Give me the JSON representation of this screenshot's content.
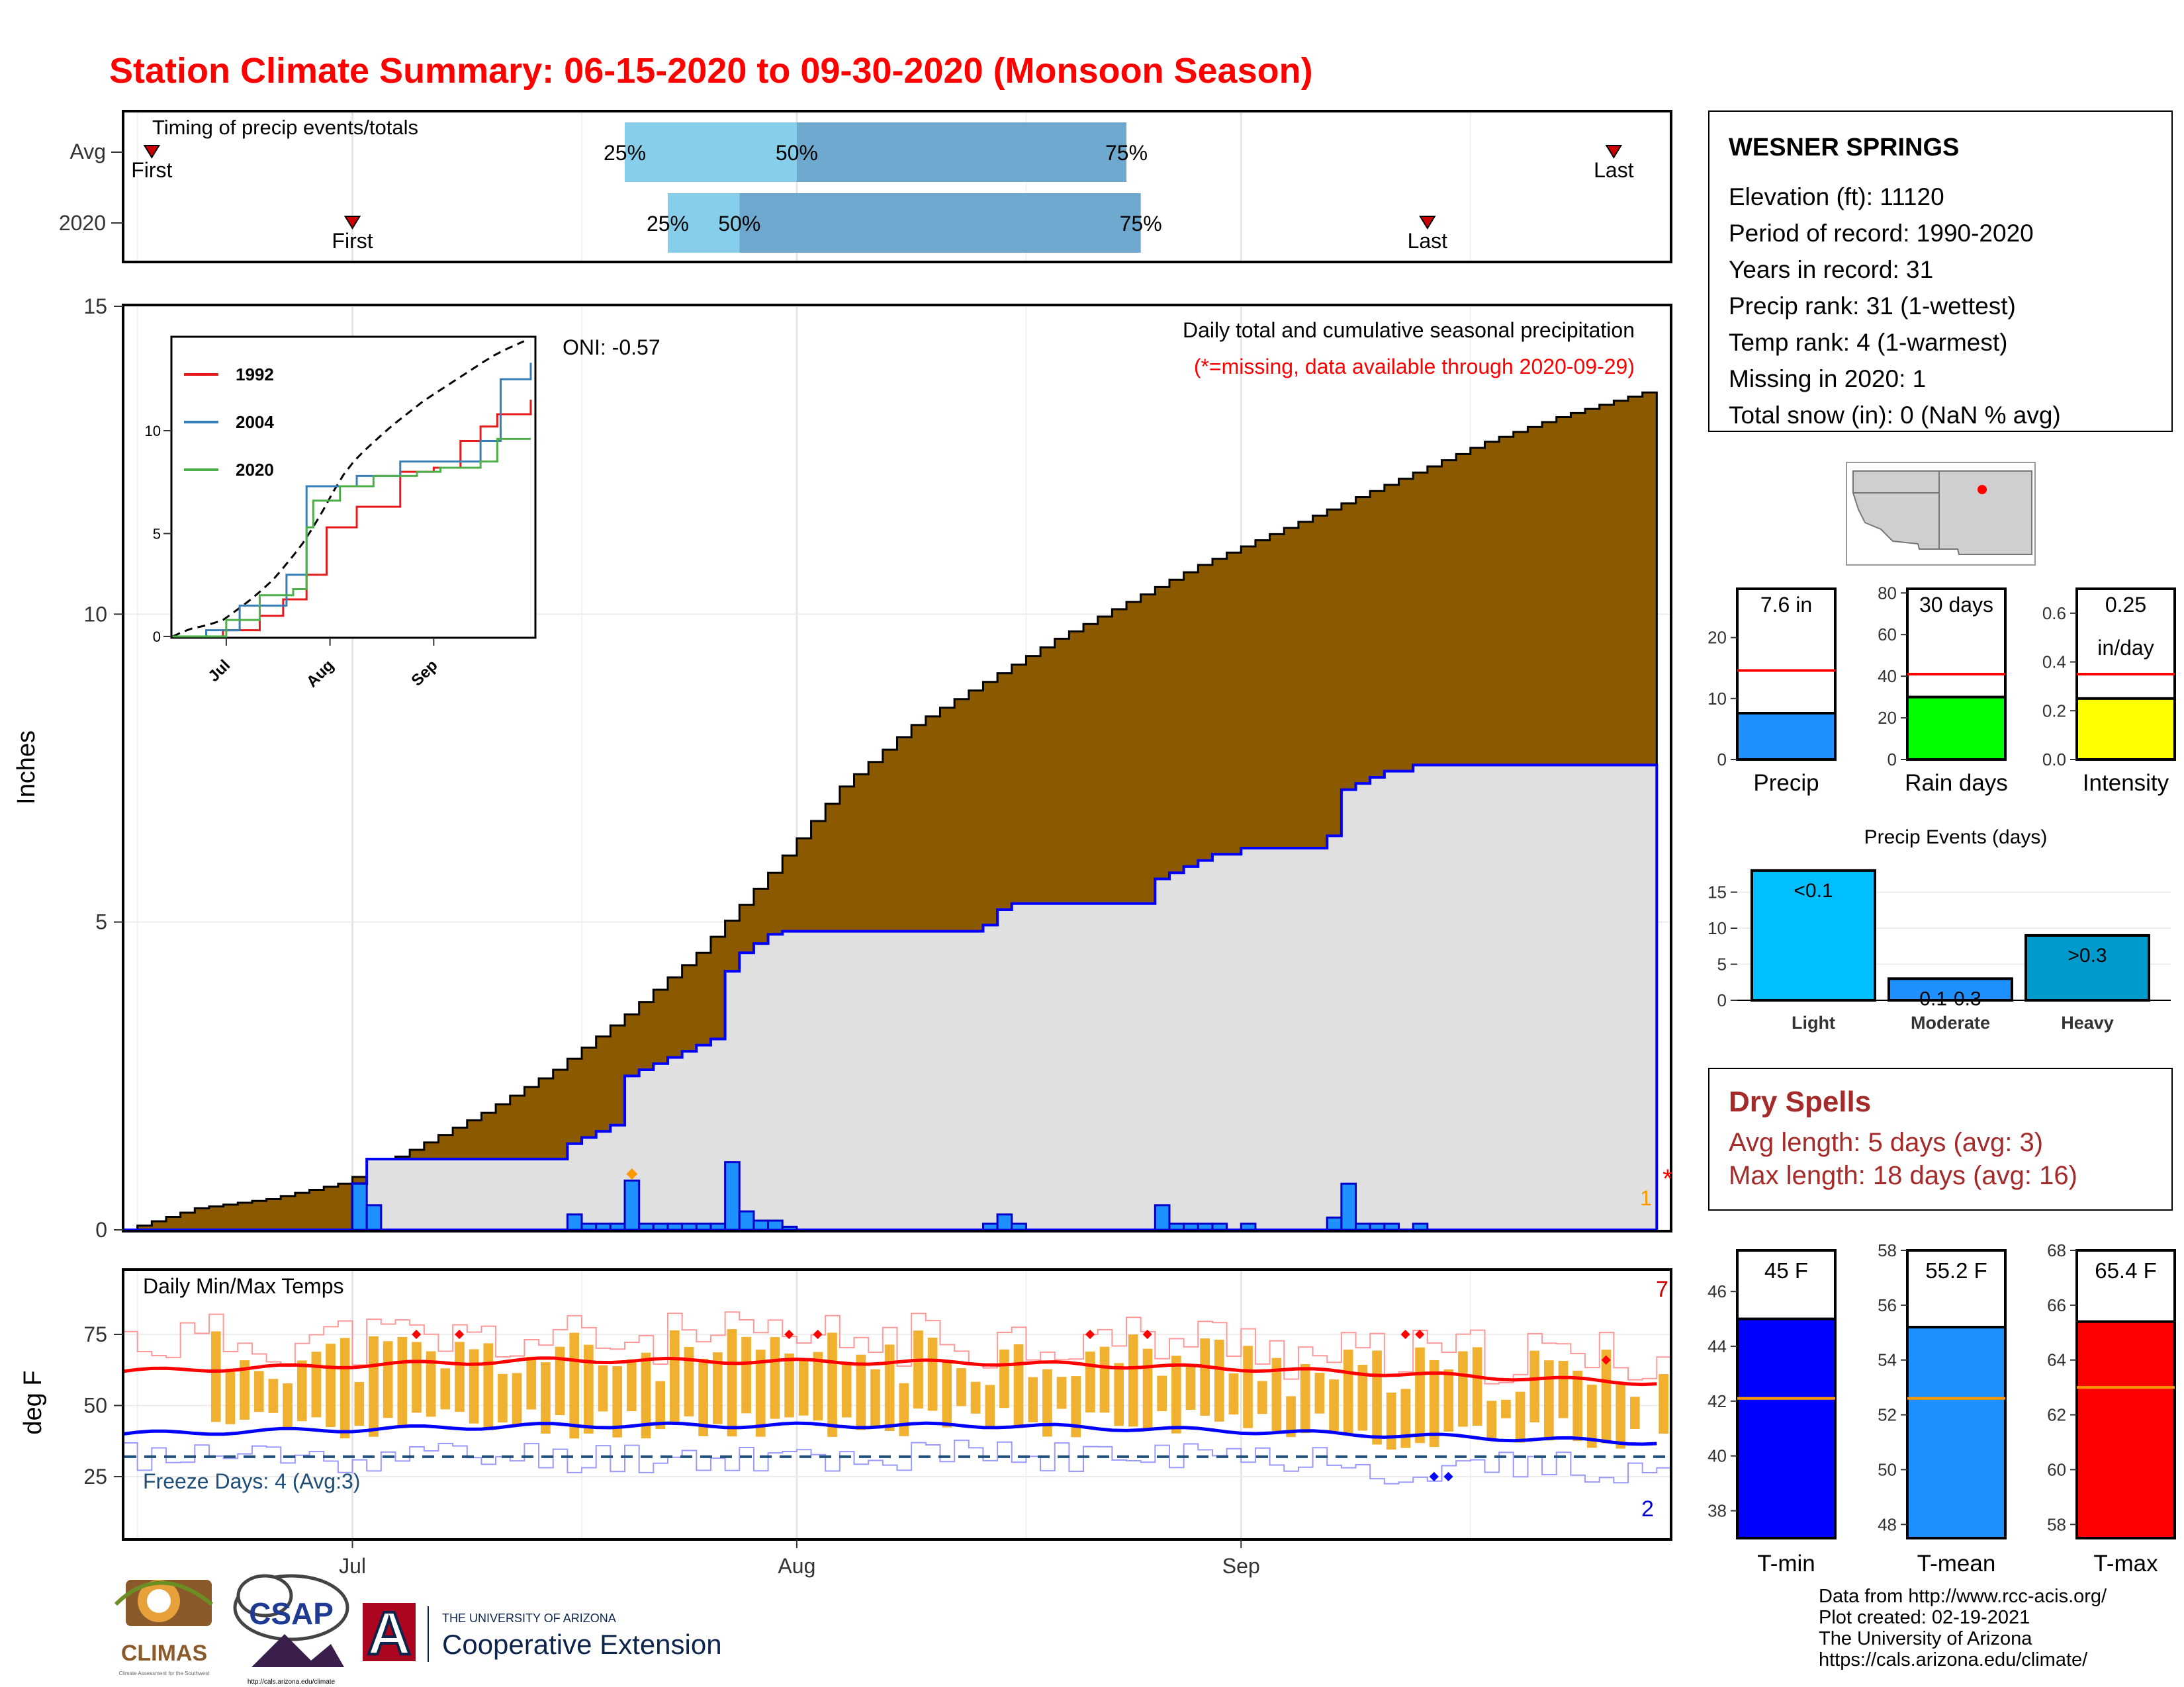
{
  "title": "Station Climate Summary: 06-15-2020 to 09-30-2020 (Monsoon Season)",
  "colors": {
    "title": "#ff0000",
    "avg_cum": "#8b5a00",
    "obs_cum_fill": "#e0e0e0",
    "obs_line": "#0000ff",
    "daily_bar": "#1e90ff",
    "temp_bar": "#f0b030",
    "tmin": "#0000ff",
    "tmean": "#1e90ff",
    "tmax": "#ff0000",
    "avg_line": "#ff9900",
    "dry_spells": "#a52a2a",
    "light": "#00bfff",
    "moderate": "#1e90ff",
    "heavy": "#009acd",
    "iqr_light": "#87ceeb",
    "iqr_dark": "#6fa8cf"
  },
  "timing": {
    "title": "Timing of precip events/totals",
    "rows": [
      {
        "label": "Avg",
        "first": "2020-06-17",
        "p25": "2020-07-20",
        "p50": "2020-08-01",
        "p75": "2020-08-24",
        "last": "2020-09-27"
      },
      {
        "label": "2020",
        "first": "2020-07-01",
        "p25": "2020-07-23",
        "p50": "2020-07-28",
        "p75": "2020-08-25",
        "last": "2020-09-14"
      }
    ],
    "first_label": "First",
    "last_label": "Last",
    "p25_label": "25%",
    "p50_label": "50%",
    "p75_label": "75%"
  },
  "precip_panel": {
    "ylabel": "Inches",
    "yticks": [
      0,
      5,
      10,
      15
    ],
    "annotation_oni": "ONI: -0.57",
    "caption": "Daily total and cumulative seasonal precipitation",
    "caption_missing": "(*=missing, data available through 2020-09-29)",
    "missing_marker": "*",
    "missing_count": "1",
    "ylim": [
      0,
      15
    ]
  },
  "inset": {
    "yticks": [
      0,
      5,
      10
    ],
    "xticks": [
      "Jul",
      "Aug",
      "Sep"
    ],
    "legend": [
      {
        "name": "1992",
        "color": "#e41a1c"
      },
      {
        "name": "2004",
        "color": "#377eb8"
      },
      {
        "name": "2020",
        "color": "#4daf4a"
      }
    ]
  },
  "temp_panel": {
    "ylabel": "deg F",
    "title": "Daily Min/Max Temps",
    "yticks": [
      25,
      50,
      75
    ],
    "freeze_text": "Freeze Days: 4 (Avg:3)",
    "count_top": "7",
    "count_bottom": "2",
    "freeze_threshold": 32
  },
  "xaxis": {
    "ticks": [
      {
        "date": "2020-07-01",
        "label": "Jul"
      },
      {
        "date": "2020-08-01",
        "label": "Aug"
      },
      {
        "date": "2020-09-01",
        "label": "Sep"
      }
    ],
    "start": "2020-06-15",
    "end": "2020-09-30"
  },
  "station": {
    "name": "WESNER SPRINGS",
    "lines": [
      "Elevation (ft): 11120",
      "Period of record: 1990-2020",
      "Years in record: 31",
      "Precip rank: 31 (1-wettest)",
      "Temp rank: 4 (1-warmest)",
      "Missing in 2020: 1",
      "Total snow (in): 0 (NaN % avg)"
    ]
  },
  "mini_bars": [
    {
      "xlabel": "Precip",
      "label": "7.6 in",
      "value": 7.6,
      "avg": 14.6,
      "ymax": 28,
      "yticks": [
        0,
        10,
        20
      ],
      "color": "#1e90ff"
    },
    {
      "xlabel": "Rain days",
      "label": "30 days",
      "value": 30,
      "avg": 41,
      "ymax": 82,
      "yticks": [
        0,
        20,
        40,
        60,
        80
      ],
      "color": "#00ff00"
    },
    {
      "xlabel": "Intensity",
      "label": "0.25",
      "label2": "in/day",
      "value": 0.25,
      "avg": 0.35,
      "ymax": 0.7,
      "yticks": [
        "0.0",
        "0.2",
        "0.4",
        "0.6"
      ],
      "color": "#ffff00"
    }
  ],
  "precip_events": {
    "title": "Precip Events (days)",
    "yticks": [
      0,
      5,
      10,
      15
    ],
    "categories": [
      "Light",
      "Moderate",
      "Heavy"
    ],
    "values": [
      18,
      3,
      9
    ],
    "labels": [
      "<0.1",
      "0.1-0.3",
      ">0.3"
    ]
  },
  "dry_spells": {
    "title": "Dry Spells",
    "avg_line": "Avg length: 5 days (avg: 3)",
    "max_line": "Max length: 18 days (avg: 16)"
  },
  "temp_bars": [
    {
      "xlabel": "T-min",
      "label": "45 F",
      "value": 45,
      "avg": 42.1,
      "ymin": 37,
      "ymax": 47.5,
      "yticks": [
        38,
        40,
        42,
        44,
        46
      ],
      "color": "#0000ff"
    },
    {
      "xlabel": "T-mean",
      "label": "55.2 F",
      "value": 55.2,
      "avg": 52.6,
      "ymin": 47.5,
      "ymax": 58,
      "yticks": [
        48,
        50,
        52,
        54,
        56,
        58
      ],
      "color": "#1e90ff"
    },
    {
      "xlabel": "T-max",
      "label": "65.4 F",
      "value": 65.4,
      "avg": 63,
      "ymin": 57.5,
      "ymax": 68,
      "yticks": [
        58,
        60,
        62,
        64,
        66,
        68
      ],
      "color": "#ff0000"
    }
  ],
  "logos": {
    "climas": "CLIMAS",
    "climas_sub": "Climate Assessment for the Southwest",
    "csap": "CSAP",
    "csap_url": "http://cals.arizona.edu/climate",
    "ua_small": "THE UNIVERSITY OF ARIZONA",
    "ua_big": "Cooperative Extension",
    "ua_letter": "A"
  },
  "footer": [
    "Data from http://www.rcc-acis.org/",
    "Plot created: 02-19-2021",
    "The University of Arizona",
    "https://cals.arizona.edu/climate/"
  ],
  "chart_data": [
    {
      "type": "bar",
      "title": "Timing of precip events/totals",
      "categories": [
        "Avg",
        "2020"
      ],
      "series": [
        {
          "name": "First",
          "values": [
            "2020-06-17",
            "2020-07-01"
          ]
        },
        {
          "name": "25%",
          "values": [
            "2020-07-20",
            "2020-07-23"
          ]
        },
        {
          "name": "50%",
          "values": [
            "2020-08-01",
            "2020-07-28"
          ]
        },
        {
          "name": "75%",
          "values": [
            "2020-08-24",
            "2020-08-25"
          ]
        },
        {
          "name": "Last",
          "values": [
            "2020-09-27",
            "2020-09-14"
          ]
        }
      ]
    },
    {
      "type": "area",
      "title": "Daily total and cumulative seasonal precipitation",
      "ylabel": "Inches",
      "ylim": [
        0,
        15
      ],
      "x_start": "2020-06-15",
      "avg_cumulative_knots": [
        [
          "2020-06-15",
          0
        ],
        [
          "2020-06-20",
          0.35
        ],
        [
          "2020-06-25",
          0.5
        ],
        [
          "2020-06-30",
          0.75
        ],
        [
          "2020-07-05",
          1.3
        ],
        [
          "2020-07-10",
          1.9
        ],
        [
          "2020-07-15",
          2.6
        ],
        [
          "2020-07-20",
          3.5
        ],
        [
          "2020-07-25",
          4.5
        ],
        [
          "2020-07-30",
          5.8
        ],
        [
          "2020-08-04",
          7.2
        ],
        [
          "2020-08-09",
          8.2
        ],
        [
          "2020-08-14",
          8.9
        ],
        [
          "2020-08-19",
          9.6
        ],
        [
          "2020-08-24",
          10.2
        ],
        [
          "2020-08-29",
          10.8
        ],
        [
          "2020-09-03",
          11.3
        ],
        [
          "2020-09-08",
          11.8
        ],
        [
          "2020-09-13",
          12.3
        ],
        [
          "2020-09-18",
          12.8
        ],
        [
          "2020-09-23",
          13.2
        ],
        [
          "2020-09-29",
          13.6
        ]
      ],
      "series": [
        {
          "name": "2020 daily precip",
          "x": [
            "2020-07-01",
            "2020-07-02",
            "2020-07-16",
            "2020-07-17",
            "2020-07-18",
            "2020-07-19",
            "2020-07-20",
            "2020-07-21",
            "2020-07-22",
            "2020-07-23",
            "2020-07-24",
            "2020-07-25",
            "2020-07-26",
            "2020-07-27",
            "2020-07-28",
            "2020-07-29",
            "2020-07-30",
            "2020-07-31",
            "2020-08-14",
            "2020-08-15",
            "2020-08-16",
            "2020-08-26",
            "2020-08-27",
            "2020-08-28",
            "2020-08-29",
            "2020-08-30",
            "2020-09-01",
            "2020-09-07",
            "2020-09-08",
            "2020-09-09",
            "2020-09-10",
            "2020-09-11",
            "2020-09-13"
          ],
          "values": [
            0.75,
            0.4,
            0.25,
            0.1,
            0.1,
            0.1,
            0.8,
            0.1,
            0.1,
            0.1,
            0.1,
            0.1,
            0.1,
            1.1,
            0.3,
            0.15,
            0.15,
            0.05,
            0.1,
            0.25,
            0.1,
            0.4,
            0.1,
            0.1,
            0.1,
            0.1,
            0.1,
            0.2,
            0.75,
            0.1,
            0.1,
            0.1,
            0.1
          ]
        }
      ]
    },
    {
      "type": "line",
      "title": "Daily Min/Max Temps",
      "ylabel": "deg F",
      "series": [
        {
          "name": "avg max",
          "x": [
            "2020-06-15",
            "2020-07-15",
            "2020-08-15",
            "2020-09-01",
            "2020-09-30"
          ],
          "values": [
            62,
            66,
            65,
            63,
            58
          ]
        },
        {
          "name": "avg min",
          "x": [
            "2020-06-15",
            "2020-07-15",
            "2020-08-15",
            "2020-09-01",
            "2020-09-30"
          ],
          "values": [
            40,
            43,
            43,
            41,
            37
          ]
        }
      ]
    },
    {
      "type": "bar",
      "categories": [
        "Precip",
        "Rain days",
        "Intensity"
      ],
      "series": [
        {
          "name": "2020",
          "values": [
            7.6,
            30,
            0.25
          ]
        },
        {
          "name": "avg",
          "values": [
            14.6,
            41,
            0.35
          ]
        }
      ]
    },
    {
      "type": "bar",
      "title": "Precip Events (days)",
      "categories": [
        "Light",
        "Moderate",
        "Heavy"
      ],
      "values": [
        18,
        3,
        9
      ]
    },
    {
      "type": "bar",
      "categories": [
        "T-min",
        "T-mean",
        "T-max"
      ],
      "series": [
        {
          "name": "2020",
          "values": [
            45,
            55.2,
            65.4
          ]
        },
        {
          "name": "avg",
          "values": [
            42.1,
            52.6,
            63
          ]
        }
      ]
    }
  ]
}
